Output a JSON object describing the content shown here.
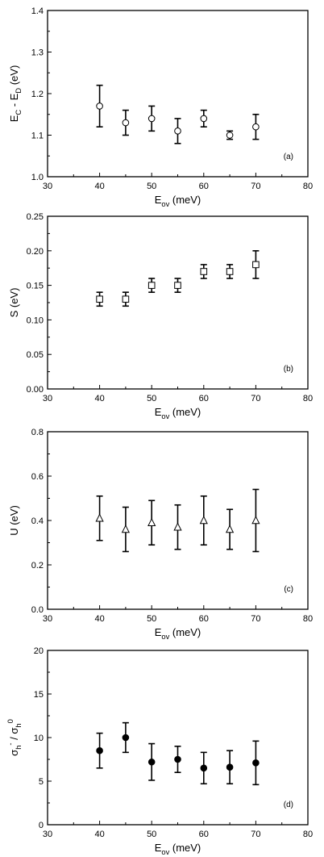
{
  "chart_data": [
    {
      "type": "scatter",
      "panel_label": "(a)",
      "ylabel_main": "E",
      "ylabel_parts": [
        {
          "t": "E",
          "sub": false
        },
        {
          "t": "C",
          "sub": true
        },
        {
          "t": " - E",
          "sub": false
        },
        {
          "t": "D",
          "sub": true
        },
        {
          "t": " (eV)",
          "sub": false
        }
      ],
      "xlabel_parts": [
        {
          "t": "E",
          "sub": false
        },
        {
          "t": "ov",
          "sub": true
        },
        {
          "t": " (meV)",
          "sub": false
        }
      ],
      "xlim": [
        30,
        80
      ],
      "ylim": [
        1.0,
        1.4
      ],
      "xticks": [
        "30",
        "40",
        "50",
        "60",
        "70",
        "80"
      ],
      "yticks": [
        "1.0",
        "1.1",
        "1.2",
        "1.3",
        "1.4"
      ],
      "marker": "circle-open",
      "points": [
        {
          "x": 40,
          "y": 1.17,
          "err": 0.05
        },
        {
          "x": 45,
          "y": 1.13,
          "err": 0.03
        },
        {
          "x": 50,
          "y": 1.14,
          "err": 0.03
        },
        {
          "x": 55,
          "y": 1.11,
          "err": 0.03
        },
        {
          "x": 60,
          "y": 1.14,
          "err": 0.02
        },
        {
          "x": 65,
          "y": 1.1,
          "err": 0.01
        },
        {
          "x": 70,
          "y": 1.12,
          "err": 0.03
        }
      ]
    },
    {
      "type": "scatter",
      "panel_label": "(b)",
      "ylabel_parts": [
        {
          "t": "S (eV)",
          "sub": false
        }
      ],
      "xlabel_parts": [
        {
          "t": "E",
          "sub": false
        },
        {
          "t": "ov",
          "sub": true
        },
        {
          "t": " (meV)",
          "sub": false
        }
      ],
      "xlim": [
        30,
        80
      ],
      "ylim": [
        0.0,
        0.25
      ],
      "xticks": [
        "30",
        "40",
        "50",
        "60",
        "70",
        "80"
      ],
      "yticks": [
        "0.00",
        "0.05",
        "0.10",
        "0.15",
        "0.20",
        "0.25"
      ],
      "marker": "square-open",
      "points": [
        {
          "x": 40,
          "y": 0.13,
          "err": 0.01
        },
        {
          "x": 45,
          "y": 0.13,
          "err": 0.01
        },
        {
          "x": 50,
          "y": 0.15,
          "err": 0.01
        },
        {
          "x": 55,
          "y": 0.15,
          "err": 0.01
        },
        {
          "x": 60,
          "y": 0.17,
          "err": 0.01
        },
        {
          "x": 65,
          "y": 0.17,
          "err": 0.01
        },
        {
          "x": 70,
          "y": 0.18,
          "err": 0.02
        }
      ]
    },
    {
      "type": "scatter",
      "panel_label": "(c)",
      "ylabel_parts": [
        {
          "t": "U (eV)",
          "sub": false
        }
      ],
      "xlabel_parts": [
        {
          "t": "E",
          "sub": false
        },
        {
          "t": "ov",
          "sub": true
        },
        {
          "t": " (meV)",
          "sub": false
        }
      ],
      "xlim": [
        30,
        80
      ],
      "ylim": [
        0.0,
        0.8
      ],
      "xticks": [
        "30",
        "40",
        "50",
        "60",
        "70",
        "80"
      ],
      "yticks": [
        "0.0",
        "0.2",
        "0.4",
        "0.6",
        "0.8"
      ],
      "marker": "triangle-open",
      "points": [
        {
          "x": 40,
          "y": 0.41,
          "err": 0.1
        },
        {
          "x": 45,
          "y": 0.36,
          "err": 0.1
        },
        {
          "x": 50,
          "y": 0.39,
          "err": 0.1
        },
        {
          "x": 55,
          "y": 0.37,
          "err": 0.1
        },
        {
          "x": 60,
          "y": 0.4,
          "err": 0.11
        },
        {
          "x": 65,
          "y": 0.36,
          "err": 0.09
        },
        {
          "x": 70,
          "y": 0.4,
          "err": 0.14
        }
      ]
    },
    {
      "type": "scatter",
      "panel_label": "(d)",
      "ylabel_parts": [
        {
          "t": "σ",
          "sub": false
        },
        {
          "t": "h",
          "sub": true
        },
        {
          "t": "-",
          "sup": true
        },
        {
          "t": " / σ",
          "sub": false
        },
        {
          "t": "h",
          "sub": true
        },
        {
          "t": "0",
          "sup": true
        }
      ],
      "xlabel_parts": [
        {
          "t": "E",
          "sub": false
        },
        {
          "t": "ov",
          "sub": true
        },
        {
          "t": " (meV)",
          "sub": false
        }
      ],
      "xlim": [
        30,
        80
      ],
      "ylim": [
        0,
        20
      ],
      "xticks": [
        "30",
        "40",
        "50",
        "60",
        "70",
        "80"
      ],
      "yticks": [
        "0",
        "5",
        "10",
        "15",
        "20"
      ],
      "marker": "circle-filled",
      "points": [
        {
          "x": 40,
          "y": 8.5,
          "err": 2.0
        },
        {
          "x": 45,
          "y": 10.0,
          "err": 1.7
        },
        {
          "x": 50,
          "y": 7.2,
          "err": 2.1
        },
        {
          "x": 55,
          "y": 7.5,
          "err": 1.5
        },
        {
          "x": 60,
          "y": 6.5,
          "err": 1.8
        },
        {
          "x": 65,
          "y": 6.6,
          "err": 1.9
        },
        {
          "x": 70,
          "y": 7.1,
          "err": 2.5
        }
      ]
    }
  ]
}
